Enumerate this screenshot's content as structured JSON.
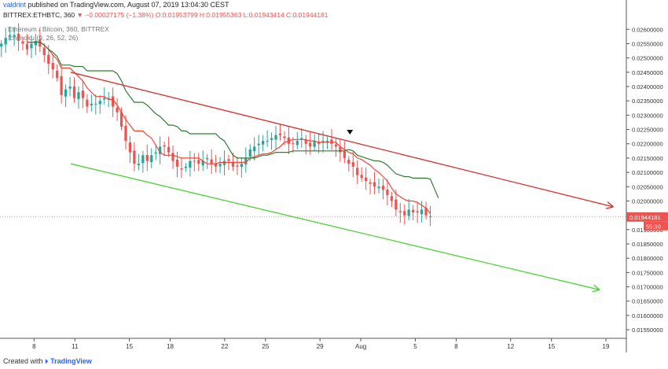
{
  "header": {
    "author": "valdrint",
    "published_text": "published on TradingView.com, August 07, 2019 13:04:30 CEST",
    "ticker_line": "BITTREX:ETHBTC, 360",
    "change_value": "−0.00027175 (−1.38%)",
    "ohlc": "O:0.01953799 H:0.01955363 L:0.01943414 C:0.01944181"
  },
  "legend": {
    "symbol": "Ethereum / Bitcoin, 360, BITTREX",
    "indicator": "Ichimoku (9, 26, 52, 26)"
  },
  "footer": {
    "created_with": "Created with",
    "brand": "TradingView"
  },
  "colors": {
    "up": "#26a69a",
    "down": "#ef5350",
    "tenkan": "#f44336",
    "kijun": "#2e7d32",
    "resistance": "#d32f2f",
    "support": "#4cd137",
    "price_label": "#ef5350"
  },
  "chart_data": {
    "type": "candlestick",
    "timeframe": "360",
    "y_ticks": [
      0.026,
      0.0255,
      0.025,
      0.0245,
      0.024,
      0.0235,
      0.023,
      0.0225,
      0.022,
      0.0215,
      0.021,
      0.0205,
      0.02,
      0.0195,
      0.019,
      0.0185,
      0.018,
      0.0175,
      0.017,
      0.0165,
      0.016,
      0.0155
    ],
    "y_tick_labels": [
      "0.02600000",
      "0.02550000",
      "0.02500000",
      "0.02450000",
      "0.02400000",
      "0.02350000",
      "0.02300000",
      "0.02250000",
      "0.02200000",
      "0.02150000",
      "0.02100000",
      "0.02050000",
      "0.02000000",
      "0.01950000",
      "0.01900000",
      "0.01850000",
      "0.01800000",
      "0.01750000",
      "0.01700000",
      "0.01650000",
      "0.01600000",
      "0.01550000"
    ],
    "x_ticks": [
      {
        "day": 8,
        "label": "8"
      },
      {
        "day": 11,
        "label": "11"
      },
      {
        "day": 15,
        "label": "15"
      },
      {
        "day": 18,
        "label": "18"
      },
      {
        "day": 22,
        "label": "22"
      },
      {
        "day": 25,
        "label": "25"
      },
      {
        "day": 29,
        "label": "29"
      },
      {
        "day": 32,
        "label": "Aug"
      },
      {
        "day": 36,
        "label": "5"
      },
      {
        "day": 39,
        "label": "8"
      },
      {
        "day": 43,
        "label": "12"
      },
      {
        "day": 46,
        "label": "15"
      },
      {
        "day": 50,
        "label": "19"
      }
    ],
    "ylim": [
      0.0152,
      0.0262
    ],
    "last_price": 0.01944181,
    "last_price_label": "0.01944181",
    "countdown_label": "55:30",
    "close_series": [
      0.0255,
      0.0257,
      0.0258,
      0.0258,
      0.0256,
      0.0255,
      0.0253,
      0.0255,
      0.0256,
      0.0254,
      0.0251,
      0.0248,
      0.0246,
      0.0243,
      0.0237,
      0.0239,
      0.024,
      0.0236,
      0.0238,
      0.0236,
      0.0233,
      0.0234,
      0.0234,
      0.0235,
      0.0236,
      0.0236,
      0.0233,
      0.0231,
      0.0226,
      0.0221,
      0.0217,
      0.0213,
      0.0213,
      0.0216,
      0.0214,
      0.0216,
      0.0217,
      0.0219,
      0.0219,
      0.0217,
      0.0214,
      0.0212,
      0.0211,
      0.0212,
      0.0214,
      0.0214,
      0.0213,
      0.0214,
      0.0215,
      0.0213,
      0.0212,
      0.0213,
      0.0214,
      0.0214,
      0.0212,
      0.0212,
      0.0213,
      0.0215,
      0.0218,
      0.0219,
      0.022,
      0.0221,
      0.0221,
      0.0222,
      0.0223,
      0.0223,
      0.0222,
      0.022,
      0.022,
      0.0221,
      0.0222,
      0.022,
      0.0219,
      0.0221,
      0.022,
      0.0221,
      0.0221,
      0.022,
      0.0219,
      0.0217,
      0.0215,
      0.0213,
      0.0212,
      0.0209,
      0.0208,
      0.0207,
      0.0206,
      0.0205,
      0.0205,
      0.0204,
      0.0202,
      0.02,
      0.0197,
      0.0196,
      0.0195,
      0.0197,
      0.0196,
      0.0196,
      0.0197,
      0.0195,
      0.01944181
    ],
    "resistance_line": {
      "from": {
        "day": 10.7,
        "price": 0.0245
      },
      "to": {
        "day": 50.5,
        "price": 0.0198
      }
    },
    "support_line": {
      "from": {
        "day": 10.7,
        "price": 0.0213
      },
      "to": {
        "day": 49.5,
        "price": 0.0169
      }
    },
    "marker": {
      "day": 31.2,
      "shape": "down-triangle"
    }
  }
}
